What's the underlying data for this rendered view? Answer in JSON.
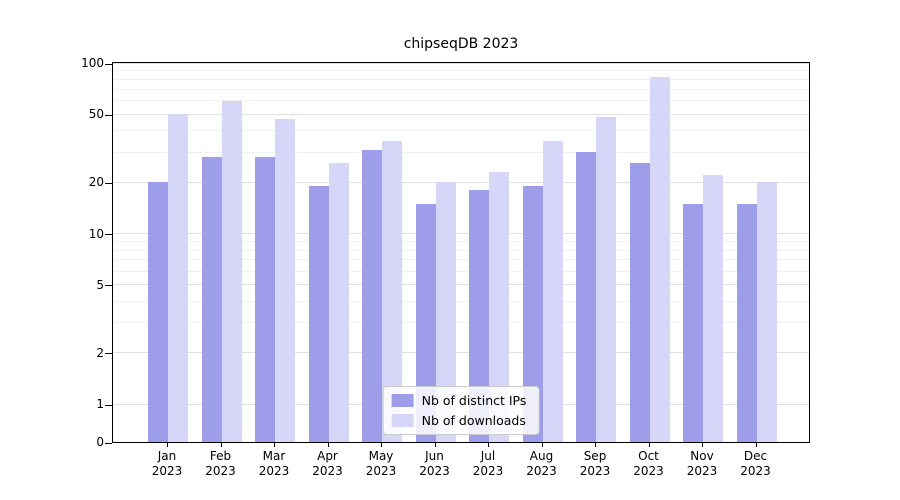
{
  "chart_data": {
    "type": "bar",
    "title": "chipseqDB 2023",
    "categories": [
      "Jan",
      "Feb",
      "Mar",
      "Apr",
      "May",
      "Jun",
      "Jul",
      "Aug",
      "Sep",
      "Oct",
      "Nov",
      "Dec"
    ],
    "year": "2023",
    "series": [
      {
        "name": "Nb of distinct IPs",
        "color": "#9d9dea",
        "values": [
          20,
          28,
          28,
          19,
          31,
          15,
          18,
          19,
          30,
          26,
          15,
          15
        ]
      },
      {
        "name": "Nb of downloads",
        "color": "#d6d6f8",
        "values": [
          50,
          60,
          47,
          26,
          35,
          20,
          23,
          35,
          48,
          83,
          22,
          20
        ]
      }
    ],
    "y_ticks": [
      0,
      1,
      2,
      5,
      10,
      20,
      50,
      100
    ],
    "ylim": [
      0,
      100
    ],
    "scale": "symlog",
    "grid": "horizontal",
    "legend_position": "lower center"
  }
}
